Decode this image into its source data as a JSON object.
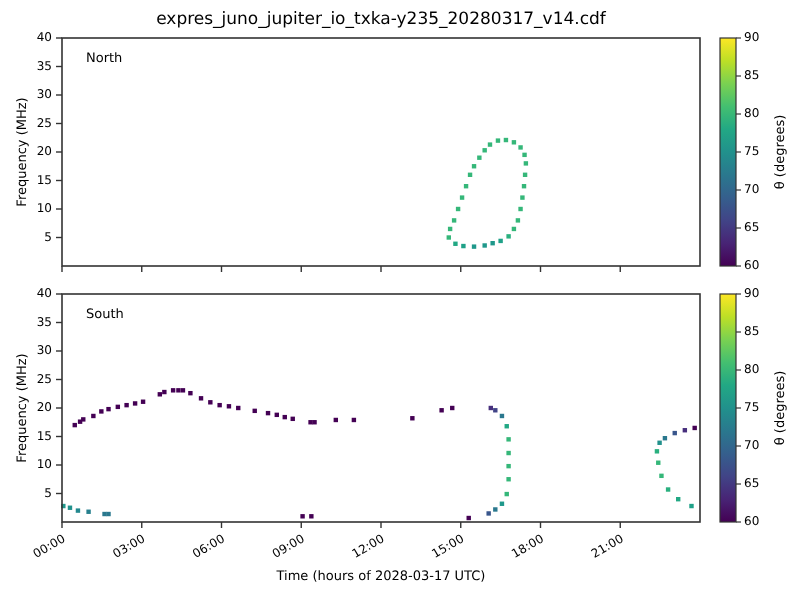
{
  "chart_data": [
    {
      "type": "scatter",
      "title": "expres_juno_jupiter_io_txka-y235_20280317_v14.cdf",
      "ylabel": "Frequency (MHz)",
      "clabel": "θ (degrees)",
      "annotations": [
        "North"
      ],
      "marker": "square",
      "tick_labels": "y",
      "xlim": [
        0,
        24
      ],
      "xticks": [
        {
          "value": 0,
          "label": null
        },
        {
          "value": 3,
          "label": null
        },
        {
          "value": 6,
          "label": null
        },
        {
          "value": 9,
          "label": null
        },
        {
          "value": 12,
          "label": null
        },
        {
          "value": 15,
          "label": null
        },
        {
          "value": 18,
          "label": null
        },
        {
          "value": 21,
          "label": null
        }
      ],
      "ylim": [
        0,
        40
      ],
      "yticks": [
        5,
        10,
        15,
        20,
        25,
        30,
        35,
        40
      ],
      "clim": [
        60,
        90
      ],
      "cticks": [
        60,
        65,
        70,
        75,
        80,
        85,
        90
      ],
      "x": [
        14.55,
        14.6,
        14.75,
        14.9,
        15.05,
        15.2,
        15.35,
        15.5,
        15.7,
        15.9,
        16.1,
        16.4,
        16.7,
        17.0,
        17.25,
        17.4,
        17.45,
        17.42,
        17.38,
        17.32,
        17.25,
        17.15,
        17.0,
        16.8,
        16.5,
        16.2,
        15.9,
        15.5,
        15.1,
        14.8
      ],
      "values": [
        5.0,
        6.5,
        8,
        10,
        12,
        14,
        16,
        17.5,
        19,
        20.3,
        21.3,
        22,
        22.1,
        21.7,
        20.8,
        19.5,
        18,
        16,
        14,
        12,
        10,
        8,
        6.5,
        5.2,
        4.4,
        4.0,
        3.6,
        3.4,
        3.5,
        3.9
      ],
      "cvalues": [
        80,
        80,
        80,
        80,
        80,
        80,
        80,
        80,
        80,
        80,
        80,
        80,
        80,
        80,
        80,
        80,
        80,
        80,
        80,
        80,
        80,
        80,
        80,
        79,
        77,
        76,
        76,
        76,
        77,
        78
      ]
    },
    {
      "type": "scatter",
      "xlabel": "Time (hours of 2028-03-17 UTC)",
      "ylabel": "Frequency (MHz)",
      "clabel": "θ (degrees)",
      "annotations": [
        "South"
      ],
      "marker": "square",
      "xlim": [
        0,
        24
      ],
      "xticks": [
        {
          "value": 0,
          "label": "00:00"
        },
        {
          "value": 3,
          "label": "03:00"
        },
        {
          "value": 6,
          "label": "06:00"
        },
        {
          "value": 9,
          "label": "09:00"
        },
        {
          "value": 12,
          "label": "12:00"
        },
        {
          "value": 15,
          "label": "15:00"
        },
        {
          "value": 18,
          "label": "18:00"
        },
        {
          "value": 21,
          "label": "21:00"
        }
      ],
      "ylim": [
        0,
        40
      ],
      "yticks": [
        5,
        10,
        15,
        20,
        25,
        30,
        35,
        40
      ],
      "clim": [
        60,
        90
      ],
      "cticks": [
        60,
        65,
        70,
        75,
        80,
        85,
        90
      ],
      "x": [
        0.48,
        0.68,
        0.8,
        1.18,
        1.48,
        1.75,
        2.1,
        2.43,
        2.75,
        3.05,
        3.68,
        3.85,
        4.18,
        4.38,
        4.55,
        4.83,
        5.23,
        5.58,
        5.93,
        6.28,
        6.63,
        7.25,
        7.75,
        8.08,
        8.38,
        8.68,
        9.35,
        9.5,
        10.3,
        10.98,
        13.18,
        14.28,
        14.68,
        9.05,
        9.38,
        15.3,
        0.05,
        0.3,
        0.6,
        1.0,
        1.6,
        1.75,
        16.05,
        16.3,
        16.55,
        16.73,
        16.8,
        16.8,
        16.8,
        16.8,
        16.73,
        16.55,
        16.3,
        16.13,
        23.8,
        23.43,
        23.05,
        22.68,
        22.48,
        22.38,
        22.43,
        22.55,
        22.8,
        23.18,
        23.68
      ],
      "values": [
        17.0,
        17.6,
        18.0,
        18.6,
        19.4,
        19.8,
        20.2,
        20.5,
        20.8,
        21.1,
        22.4,
        22.8,
        23.1,
        23.1,
        23.1,
        22.6,
        21.7,
        21.0,
        20.5,
        20.3,
        20.0,
        19.5,
        19.1,
        18.8,
        18.4,
        18.1,
        17.5,
        17.5,
        17.9,
        17.9,
        18.2,
        19.6,
        20.0,
        1.0,
        1.0,
        0.7,
        2.8,
        2.5,
        2.0,
        1.8,
        1.4,
        1.4,
        1.5,
        2.2,
        3.2,
        4.9,
        7.5,
        9.8,
        12.1,
        14.5,
        16.8,
        18.6,
        19.6,
        20.0,
        16.5,
        16.1,
        15.6,
        14.7,
        13.9,
        12.4,
        10.4,
        8.1,
        5.7,
        4.0,
        2.8
      ],
      "cvalues": [
        60,
        60,
        60,
        60,
        60,
        60,
        60,
        60,
        60,
        60,
        60,
        60,
        60,
        60,
        60,
        60,
        60,
        60,
        60,
        60,
        60,
        60,
        60,
        60,
        60,
        60,
        60,
        60,
        60,
        60,
        60,
        60,
        60,
        60,
        60,
        60,
        76,
        75,
        74,
        73,
        72,
        72,
        68,
        72,
        76,
        80,
        80,
        80,
        80,
        80,
        78,
        72,
        66,
        64,
        60,
        64,
        68,
        72,
        75,
        79,
        80,
        80,
        79,
        78,
        77
      ]
    }
  ]
}
